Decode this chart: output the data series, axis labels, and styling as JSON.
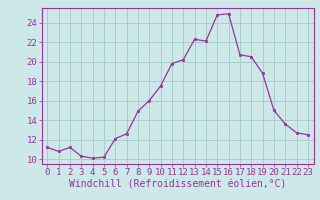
{
  "x": [
    0,
    1,
    2,
    3,
    4,
    5,
    6,
    7,
    8,
    9,
    10,
    11,
    12,
    13,
    14,
    15,
    16,
    17,
    18,
    19,
    20,
    21,
    22,
    23
  ],
  "y": [
    11.2,
    10.8,
    11.2,
    10.3,
    10.1,
    10.2,
    12.1,
    12.6,
    14.9,
    16.0,
    17.5,
    19.8,
    20.2,
    22.3,
    22.1,
    24.8,
    24.9,
    20.7,
    20.5,
    18.8,
    15.0,
    13.6,
    12.7,
    12.5
  ],
  "line_color": "#993399",
  "marker_color": "#993399",
  "bg_color": "#cce8e8",
  "grid_color": "#aacccc",
  "xlabel": "Windchill (Refroidissement éolien,°C)",
  "ylabel": "",
  "xlim": [
    -0.5,
    23.5
  ],
  "ylim": [
    9.5,
    25.5
  ],
  "yticks": [
    10,
    12,
    14,
    16,
    18,
    20,
    22,
    24
  ],
  "xticks": [
    0,
    1,
    2,
    3,
    4,
    5,
    6,
    7,
    8,
    9,
    10,
    11,
    12,
    13,
    14,
    15,
    16,
    17,
    18,
    19,
    20,
    21,
    22,
    23
  ],
  "tick_label_fontsize": 6.5,
  "xlabel_fontsize": 7,
  "label_color": "#993399",
  "spine_color": "#993399"
}
